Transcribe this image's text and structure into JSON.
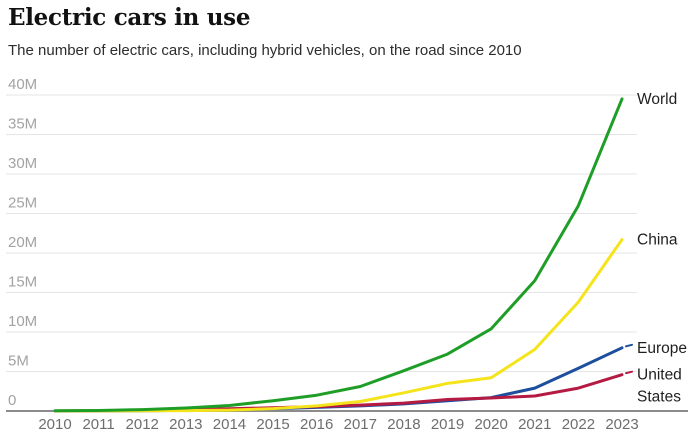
{
  "header": {
    "title": "Electric cars in use",
    "subtitle": "The number of electric cars, including hybrid vehicles, on the road since 2010"
  },
  "chart_data": {
    "type": "line",
    "title": "Electric cars in use",
    "subtitle": "The number of electric cars, including hybrid vehicles, on the road since 2010",
    "unit": "millions of cars",
    "x": [
      2010,
      2011,
      2012,
      2013,
      2014,
      2015,
      2016,
      2017,
      2018,
      2019,
      2020,
      2021,
      2022,
      2023
    ],
    "series": [
      {
        "name": "Europe",
        "label_lines": [
          "Europe"
        ],
        "color": "#1d4f9e",
        "leader_dash": true,
        "values": [
          0.0,
          0.01,
          0.03,
          0.07,
          0.15,
          0.28,
          0.45,
          0.65,
          0.9,
          1.3,
          1.7,
          2.9,
          5.4,
          8.0
        ]
      },
      {
        "name": "United States",
        "label_lines": [
          "United",
          "States"
        ],
        "color": "#b51a42",
        "leader_dash": true,
        "values": [
          0.0,
          0.02,
          0.07,
          0.17,
          0.29,
          0.4,
          0.56,
          0.75,
          1.0,
          1.45,
          1.65,
          1.9,
          2.9,
          4.6
        ]
      },
      {
        "name": "China",
        "label_lines": [
          "China"
        ],
        "color": "#f5e41c",
        "leader_dash": false,
        "values": [
          0.01,
          0.01,
          0.02,
          0.05,
          0.12,
          0.3,
          0.65,
          1.2,
          2.3,
          3.5,
          4.2,
          7.8,
          13.8,
          21.7
        ]
      },
      {
        "name": "World",
        "label_lines": [
          "World"
        ],
        "color": "#1f9e27",
        "leader_dash": false,
        "values": [
          0.02,
          0.06,
          0.18,
          0.38,
          0.7,
          1.3,
          2.0,
          3.1,
          5.1,
          7.2,
          10.4,
          16.5,
          26.0,
          39.5
        ]
      }
    ],
    "ylim": [
      0,
      40
    ],
    "ytick_values": [
      0,
      5,
      10,
      15,
      20,
      25,
      30,
      35,
      40
    ],
    "ytick_labels": [
      "0",
      "5M",
      "10M",
      "15M",
      "20M",
      "25M",
      "30M",
      "35M",
      "40M"
    ],
    "xtick_labels": [
      "2010",
      "2011",
      "2012",
      "2013",
      "2014",
      "2015",
      "2016",
      "2017",
      "2018",
      "2019",
      "2020",
      "2021",
      "2022",
      "2023"
    ],
    "grid": "horizontal",
    "legend_position": "right-of-line-ends",
    "style": {
      "gridline_color": "#e5e5e5",
      "baseline_color": "#8c8c8c",
      "ytick_color": "#a3a3a3",
      "xtick_color": "#6e6e6e",
      "label_color": "#1f1f1f",
      "background": "#ffffff"
    }
  }
}
